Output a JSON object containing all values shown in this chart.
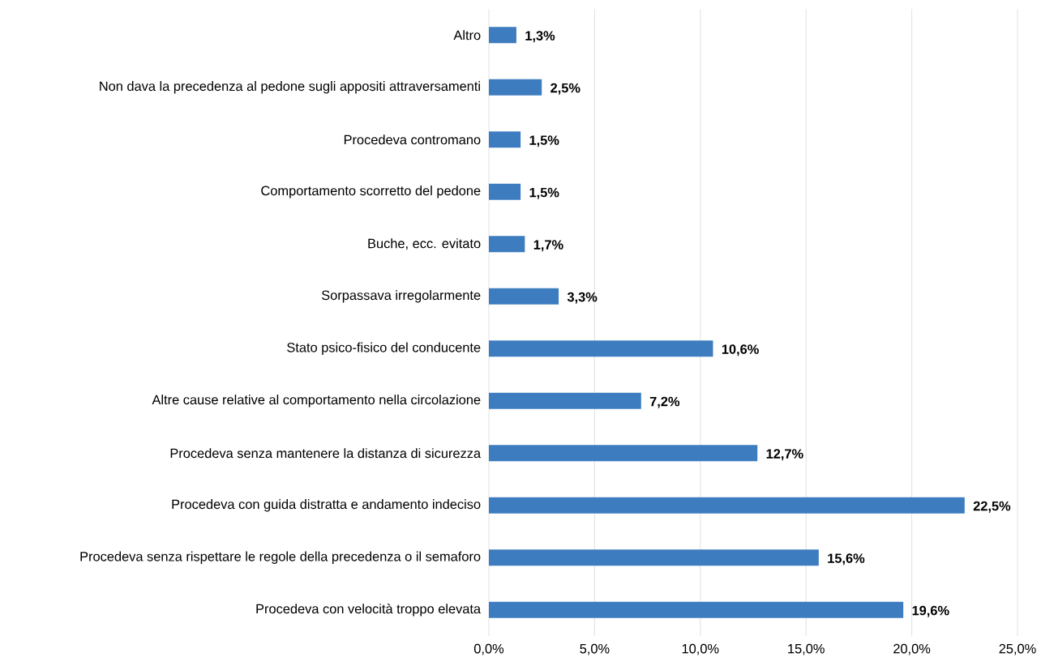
{
  "chart_data": {
    "type": "bar",
    "orientation": "horizontal",
    "categories": [
      "Altro",
      "Non dava la precedenza al pedone sugli appositi attraversamenti",
      "Procedeva contromano",
      "Comportamento scorretto del pedone",
      "Buche, ecc. evitato",
      "Sorpassava irregolarmente",
      "Stato psico-fisico del conducente",
      "Altre cause relative al comportamento nella circolazione",
      "Procedeva senza mantenere la distanza di sicurezza",
      "Procedeva con guida distratta e andamento indeciso",
      "Procedeva senza rispettare le regole della precedenza o il semaforo",
      "Procedeva con velocità troppo elevata"
    ],
    "values": [
      1.3,
      2.5,
      1.5,
      1.5,
      1.7,
      3.3,
      10.6,
      7.2,
      12.7,
      22.5,
      15.6,
      19.6
    ],
    "value_labels": [
      "1,3%",
      "2,5%",
      "1,5%",
      "1,5%",
      "1,7%",
      "3,3%",
      "10,6%",
      "7,2%",
      "12,7%",
      "22,5%",
      "15,6%",
      "19,6%"
    ],
    "color": "#3d7cbf",
    "xlim": [
      0,
      25
    ],
    "xticks": [
      {
        "value": 0,
        "label": "0,0%"
      },
      {
        "value": 5,
        "label": "5,0%"
      },
      {
        "value": 10,
        "label": "10,0%"
      },
      {
        "value": 15,
        "label": "15,0%"
      },
      {
        "value": 20,
        "label": "20,0%"
      },
      {
        "value": 25,
        "label": "25,0%"
      }
    ],
    "grid": "x"
  }
}
